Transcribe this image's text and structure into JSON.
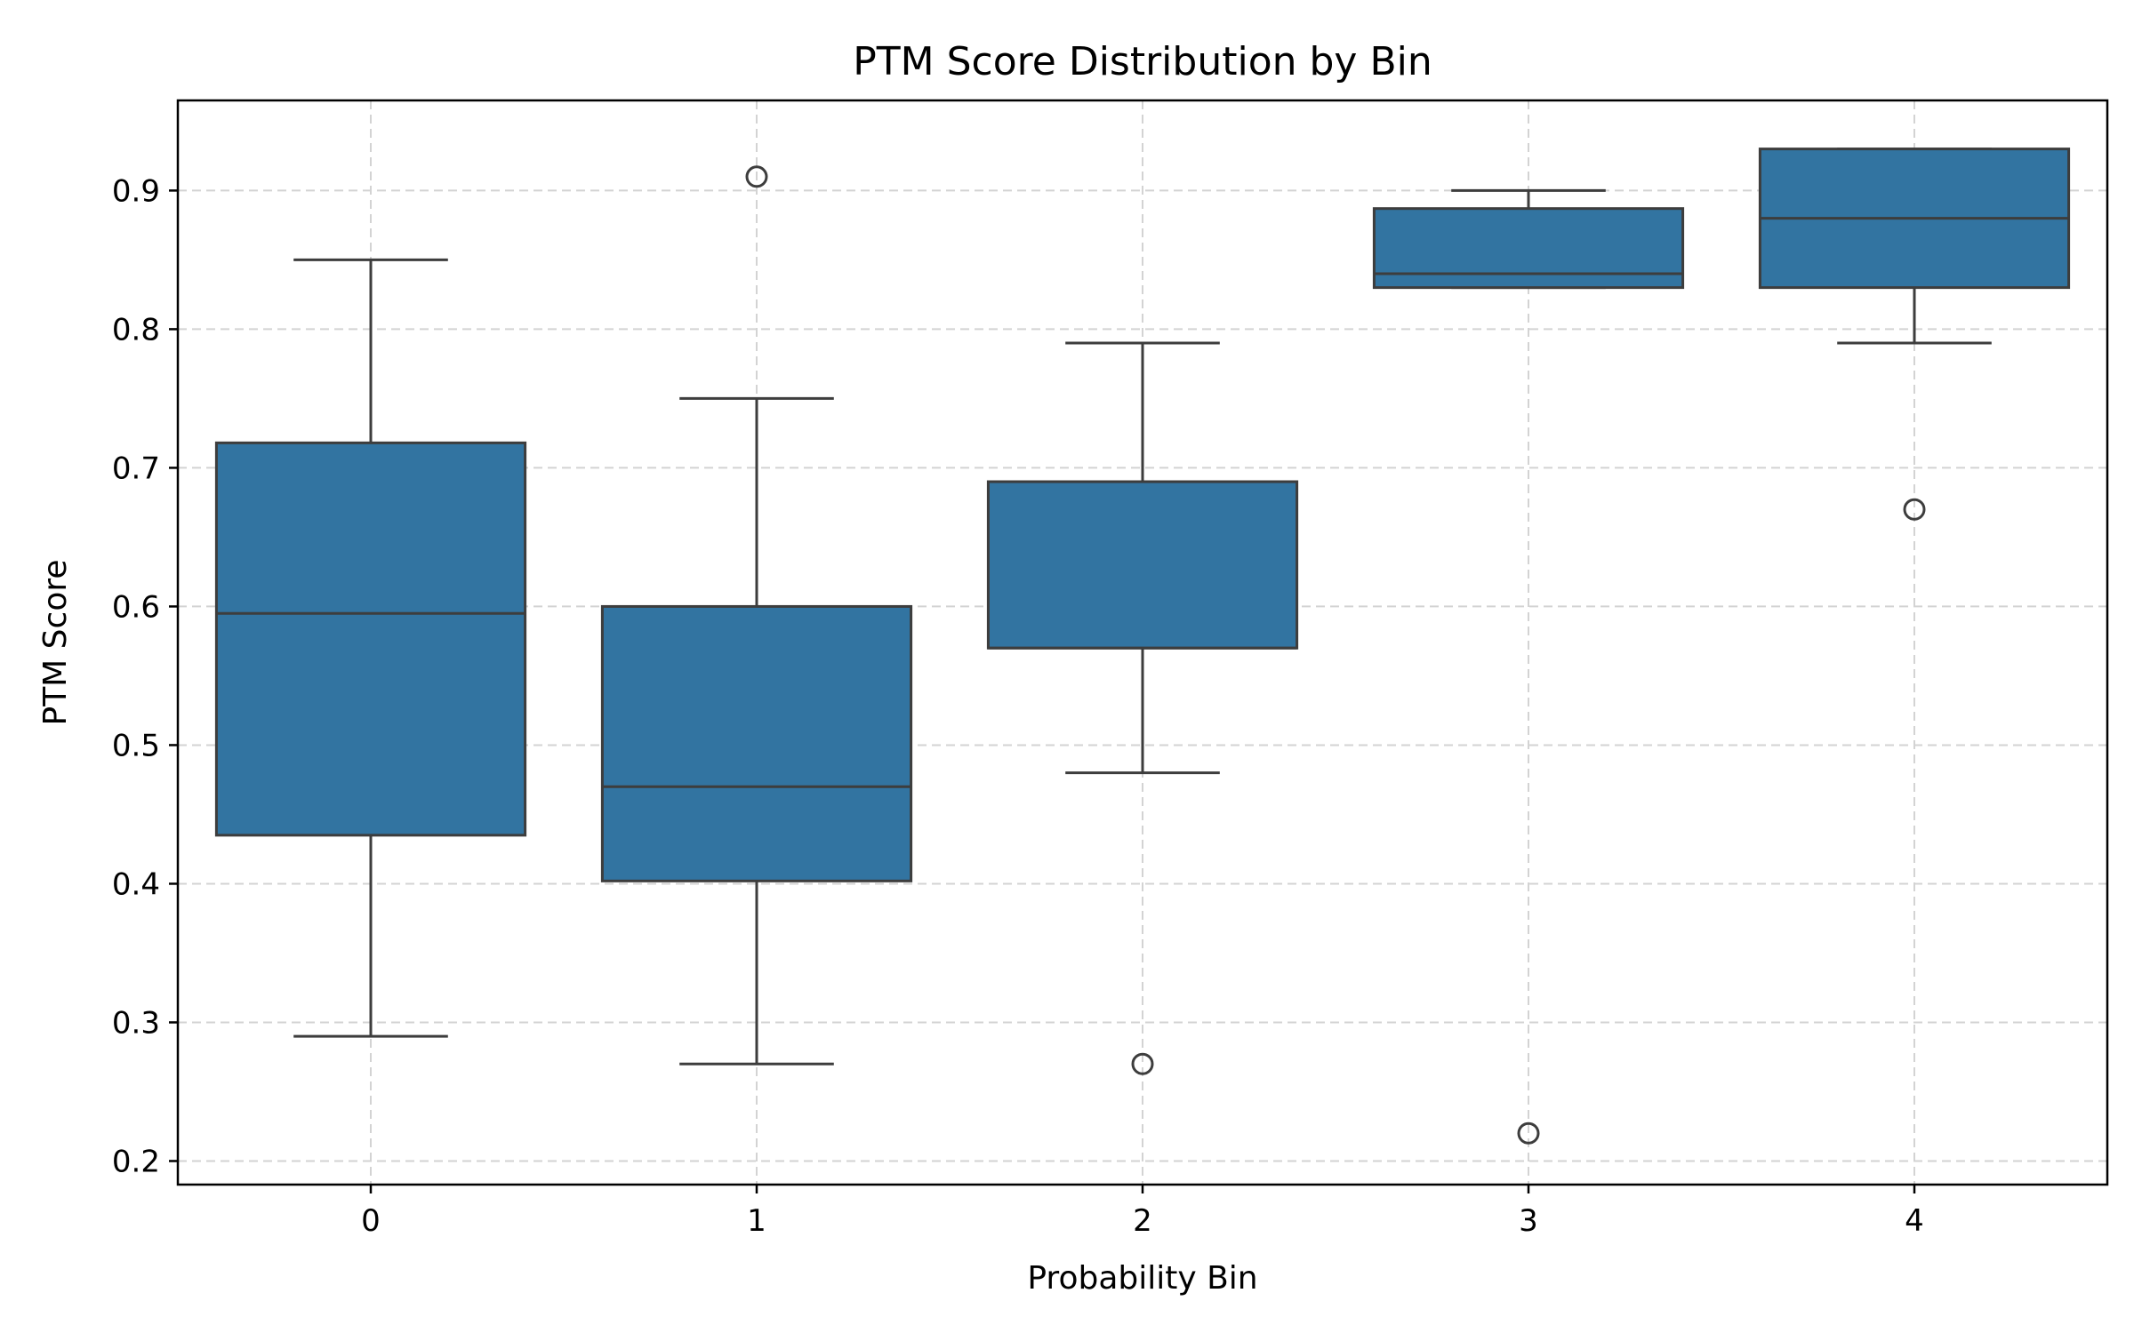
{
  "chart_data": {
    "type": "box",
    "title": "PTM Score Distribution by Bin",
    "xlabel": "Probability Bin",
    "ylabel": "PTM Score",
    "categories": [
      "0",
      "1",
      "2",
      "3",
      "4"
    ],
    "ylim": [
      0.183,
      0.965
    ],
    "yticks": [
      0.2,
      0.3,
      0.4,
      0.5,
      0.6,
      0.7,
      0.8,
      0.9
    ],
    "ytick_labels": [
      "0.2",
      "0.3",
      "0.4",
      "0.5",
      "0.6",
      "0.7",
      "0.8",
      "0.9"
    ],
    "grid": true,
    "boxes": [
      {
        "category": "0",
        "whisker_low": 0.29,
        "q1": 0.435,
        "median": 0.595,
        "q3": 0.718,
        "whisker_high": 0.85,
        "outliers": []
      },
      {
        "category": "1",
        "whisker_low": 0.27,
        "q1": 0.402,
        "median": 0.47,
        "q3": 0.6,
        "whisker_high": 0.75,
        "outliers": [
          0.91
        ]
      },
      {
        "category": "2",
        "whisker_low": 0.48,
        "q1": 0.57,
        "median": 0.57,
        "q3": 0.69,
        "whisker_high": 0.79,
        "outliers": [
          0.27
        ]
      },
      {
        "category": "3",
        "whisker_low": 0.83,
        "q1": 0.83,
        "median": 0.84,
        "q3": 0.887,
        "whisker_high": 0.9,
        "outliers": [
          0.22
        ]
      },
      {
        "category": "4",
        "whisker_low": 0.79,
        "q1": 0.83,
        "median": 0.88,
        "q3": 0.93,
        "whisker_high": 0.93,
        "outliers": [
          0.67
        ]
      }
    ],
    "colors": {
      "box_fill": "#3274a1",
      "line": "#3d3d3d",
      "grid": "#d3d3d3",
      "axes": "#000000"
    }
  }
}
